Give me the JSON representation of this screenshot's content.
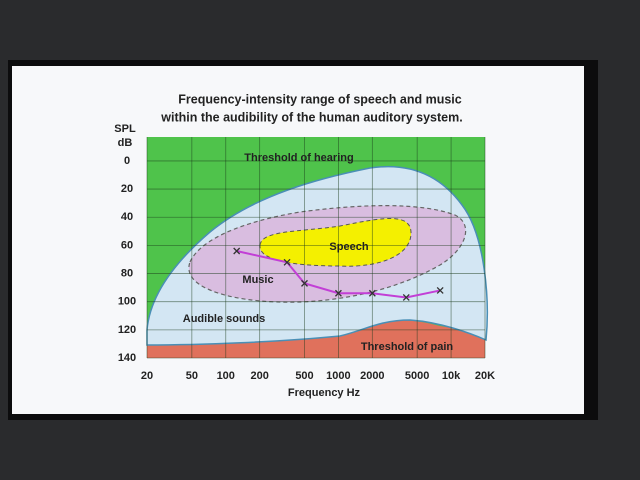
{
  "chart_data": {
    "type": "line",
    "title": [
      "Frequency-intensity range of speech and music",
      "within the audibility of the human auditory system."
    ],
    "y_label": [
      "SPL",
      "dB"
    ],
    "x_label": "Frequency Hz",
    "x_log": true,
    "y_inverted": true,
    "xlim": [
      20,
      20000
    ],
    "ylim": [
      -17,
      140
    ],
    "xticks": [
      20,
      50,
      100,
      200,
      500,
      1000,
      2000,
      5000,
      {
        "value": 10000,
        "label": "10k"
      },
      {
        "value": 20000,
        "label": "20K"
      }
    ],
    "yticks": [
      0,
      20,
      40,
      60,
      80,
      100,
      120,
      140
    ],
    "grid": true,
    "series": [
      {
        "name": "Music",
        "color": "#c23fd6",
        "x": [
          125,
          350,
          500,
          1000,
          2000,
          4000,
          8000
        ],
        "values": [
          64,
          72,
          87,
          94,
          94,
          97,
          92
        ]
      }
    ],
    "annotations": [
      "Threshold of hearing",
      "Speech",
      "Music",
      "Audible sounds",
      "Threshold of pain"
    ]
  }
}
